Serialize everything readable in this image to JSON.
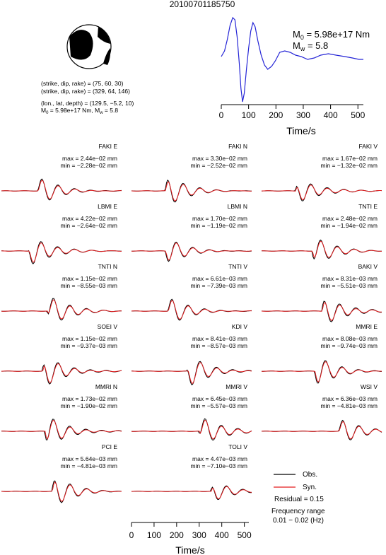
{
  "title": "20100701185750",
  "mechanism": {
    "plane1": "(strike, dip, rake) = (75, 60, 30)",
    "plane2": "(strike, dip, rake) = (329, 64, 146)",
    "location": "(lon., lat, depth) = (129.5, −5.2, 10)",
    "moment_prefix": "M",
    "moment_sub": "0",
    "moment_rest": " = 5.98e+17 Nm, M",
    "mw_sub": "w",
    "mw_rest": " = 5.8"
  },
  "stf": {
    "m0_label": "M",
    "m0_sub": "0",
    "m0_value": " = 5.98e+17 Nm",
    "mw_label": "M",
    "mw_sub": "w",
    "mw_value": " = 5.8",
    "xlabel": "Time/s",
    "ticks": [
      "0",
      "100",
      "200",
      "300",
      "400",
      "500"
    ],
    "xlim": [
      0,
      520
    ]
  },
  "traces": [
    {
      "name": "FAKI E",
      "max": "max = 2.44e−02 mm",
      "min": "min = −2.28e−02 mm"
    },
    {
      "name": "FAKI N",
      "max": "max = 3.30e−02 mm",
      "min": "min = −2.52e−02 mm"
    },
    {
      "name": "FAKI V",
      "max": "max = 1.67e−02 mm",
      "min": "min = −1.32e−02 mm"
    },
    {
      "name": "LBMI E",
      "max": "max = 4.22e−02 mm",
      "min": "min = −2.64e−02 mm"
    },
    {
      "name": "LBMI N",
      "max": "max = 1.70e−02 mm",
      "min": "min = −1.19e−02 mm"
    },
    {
      "name": "TNTI E",
      "max": "max = 2.48e−02 mm",
      "min": "min = −1.94e−02 mm"
    },
    {
      "name": "TNTI N",
      "max": "max = 1.15e−02 mm",
      "min": "min = −8.55e−03 mm"
    },
    {
      "name": "TNTI V",
      "max": "max = 6.61e−03 mm",
      "min": "min = −7.39e−03 mm"
    },
    {
      "name": "BAKI V",
      "max": "max = 8.31e−03 mm",
      "min": "min = −5.51e−03 mm"
    },
    {
      "name": "SOEI V",
      "max": "max = 1.15e−02 mm",
      "min": "min = −9.37e−03 mm"
    },
    {
      "name": "KDI V",
      "max": "max = 8.41e−03 mm",
      "min": "min = −8.57e−03 mm"
    },
    {
      "name": "MMRI E",
      "max": "max = 8.08e−03 mm",
      "min": "min = −9.74e−03 mm"
    },
    {
      "name": "MMRI N",
      "max": "max = 1.73e−02 mm",
      "min": "min = −1.90e−02 mm"
    },
    {
      "name": "MMRI V",
      "max": "max = 6.45e−03 mm",
      "min": "min = −5.57e−03 mm"
    },
    {
      "name": "WSI V",
      "max": "max = 6.36e−03 mm",
      "min": "min = −4.81e−03 mm"
    },
    {
      "name": "PCI E",
      "max": "max = 5.64e−03 mm",
      "min": "min = −4.81e−03 mm"
    },
    {
      "name": "TOLI V",
      "max": "max = 4.47e−03 mm",
      "min": "min = −7.10e−03 mm"
    }
  ],
  "legend": {
    "obs": "Obs.",
    "syn": "Syn.",
    "residual": "Residual = 0.15",
    "freq1": "Frequency range",
    "freq2": "0.01 − 0.02 (Hz)"
  },
  "bottom_axis": {
    "xlabel": "Time/s",
    "ticks": [
      "0",
      "100",
      "200",
      "300",
      "400",
      "500"
    ],
    "xlim": [
      0,
      520
    ]
  },
  "colors": {
    "observed": "#000000",
    "synthetic": "#e31a1c",
    "source_time_function": "#2424d6"
  }
}
